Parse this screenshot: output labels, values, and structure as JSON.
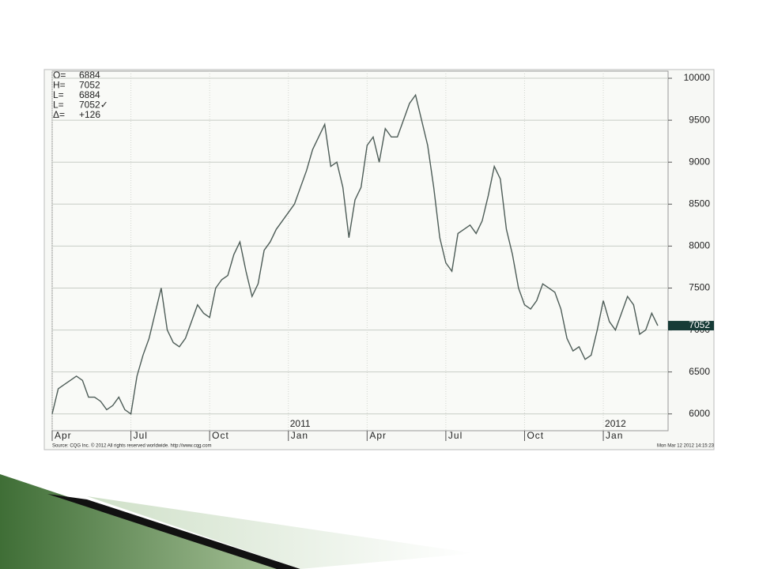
{
  "chart_data": {
    "type": "line",
    "info": [
      {
        "label": "O=",
        "value": "6884"
      },
      {
        "label": "H=",
        "value": "7052"
      },
      {
        "label": "L=",
        "value": "6884"
      },
      {
        "label": "L=",
        "value": "7052✓"
      },
      {
        "label": "Δ=",
        "value": "+126"
      }
    ],
    "last_price": 7052,
    "color": "#4d5c57",
    "categories": [
      "Apr",
      null,
      null,
      null,
      null,
      null,
      null,
      null,
      null,
      null,
      null,
      null,
      null,
      "Jul",
      null,
      null,
      null,
      null,
      null,
      null,
      null,
      null,
      null,
      null,
      null,
      null,
      "Oct",
      null,
      null,
      null,
      null,
      null,
      null,
      null,
      null,
      null,
      null,
      null,
      null,
      "Jan",
      null,
      null,
      null,
      null,
      null,
      null,
      null,
      null,
      null,
      null,
      null,
      null,
      "Apr",
      null,
      null,
      null,
      null,
      null,
      null,
      null,
      null,
      null,
      null,
      null,
      null,
      "Jul",
      null,
      null,
      null,
      null,
      null,
      null,
      null,
      null,
      null,
      null,
      null,
      null,
      "Oct",
      null,
      null,
      null,
      null,
      null,
      null,
      null,
      null,
      null,
      null,
      null,
      null,
      "Jan",
      null,
      null,
      null,
      null,
      null,
      null,
      null,
      null,
      null
    ],
    "years": [
      "2011",
      "2012"
    ],
    "values": [
      6000,
      6300,
      6350,
      6400,
      6450,
      6400,
      6200,
      6200,
      6150,
      6050,
      6100,
      6200,
      6050,
      6000,
      6450,
      6700,
      6900,
      7200,
      7500,
      7000,
      6850,
      6800,
      6900,
      7100,
      7300,
      7200,
      7150,
      7500,
      7600,
      7650,
      7900,
      8050,
      7700,
      7400,
      7550,
      7950,
      8050,
      8200,
      8300,
      8400,
      8500,
      8700,
      8900,
      9150,
      9300,
      9450,
      8950,
      9000,
      8700,
      8100,
      8550,
      8700,
      9200,
      9300,
      9000,
      9400,
      9300,
      9300,
      9500,
      9700,
      9800,
      9500,
      9200,
      8700,
      8100,
      7800,
      7700,
      8150,
      8200,
      8250,
      8150,
      8300,
      8600,
      8950,
      8800,
      8200,
      7900,
      7500,
      7300,
      7250,
      7350,
      7550,
      7500,
      7450,
      7250,
      6900,
      6750,
      6800,
      6650,
      6700,
      7000,
      7350,
      7100,
      7000,
      7200,
      7400,
      7300,
      6950,
      7000,
      7200,
      7052
    ],
    "ylim": [
      5800,
      10085
    ],
    "yticks": [
      6000,
      6500,
      7000,
      7500,
      8000,
      8500,
      9000,
      9500,
      10000
    ],
    "grid": true,
    "source": "Source: CQG Inc. © 2012 All rights reserved worldwide. http://www.cqg.com",
    "timestamp": "Mon Mar 12 2012 14:15:23"
  }
}
